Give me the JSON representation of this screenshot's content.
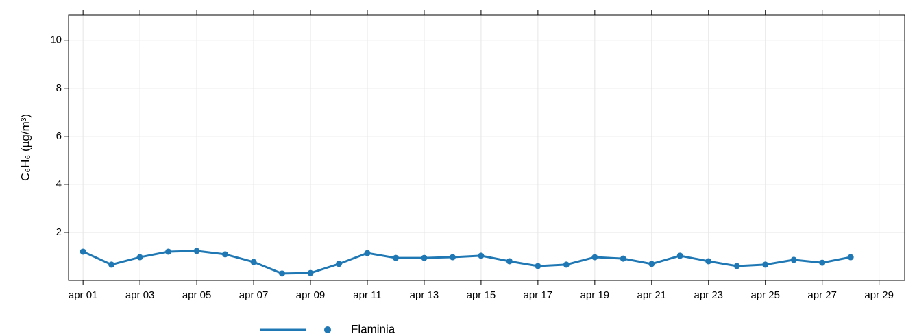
{
  "chart_data": {
    "type": "line",
    "y_label": "C₆H₆ (µg/m³)",
    "x": [
      1,
      2,
      3,
      4,
      5,
      6,
      7,
      8,
      9,
      10,
      11,
      12,
      13,
      14,
      15,
      16,
      17,
      18,
      19,
      20,
      21,
      22,
      23,
      24,
      25,
      26,
      27,
      28
    ],
    "series": [
      {
        "name": "Flaminia",
        "color": "#1f78b4",
        "values": [
          1.2,
          0.66,
          0.97,
          1.2,
          1.23,
          1.09,
          0.77,
          0.29,
          0.31,
          0.69,
          1.14,
          0.94,
          0.94,
          0.97,
          1.03,
          0.8,
          0.6,
          0.66,
          0.97,
          0.91,
          0.69,
          1.03,
          0.8,
          0.6,
          0.66,
          0.86,
          0.74,
          0.97
        ]
      }
    ],
    "xlim": [
      0.49,
      29.9
    ],
    "xticks": [
      {
        "value": 1,
        "label": "apr 01"
      },
      {
        "value": 3,
        "label": "apr 03"
      },
      {
        "value": 5,
        "label": "apr 05"
      },
      {
        "value": 7,
        "label": "apr 07"
      },
      {
        "value": 9,
        "label": "apr 09"
      },
      {
        "value": 11,
        "label": "apr 11"
      },
      {
        "value": 13,
        "label": "apr 13"
      },
      {
        "value": 15,
        "label": "apr 15"
      },
      {
        "value": 17,
        "label": "apr 17"
      },
      {
        "value": 19,
        "label": "apr 19"
      },
      {
        "value": 21,
        "label": "apr 21"
      },
      {
        "value": 23,
        "label": "apr 23"
      },
      {
        "value": 25,
        "label": "apr 25"
      },
      {
        "value": 27,
        "label": "apr 27"
      },
      {
        "value": 29,
        "label": "apr 29"
      }
    ],
    "ylim": [
      0,
      11.05
    ],
    "yticks": [
      2,
      4,
      6,
      8,
      10
    ],
    "grid": true,
    "legend": "bottom"
  }
}
